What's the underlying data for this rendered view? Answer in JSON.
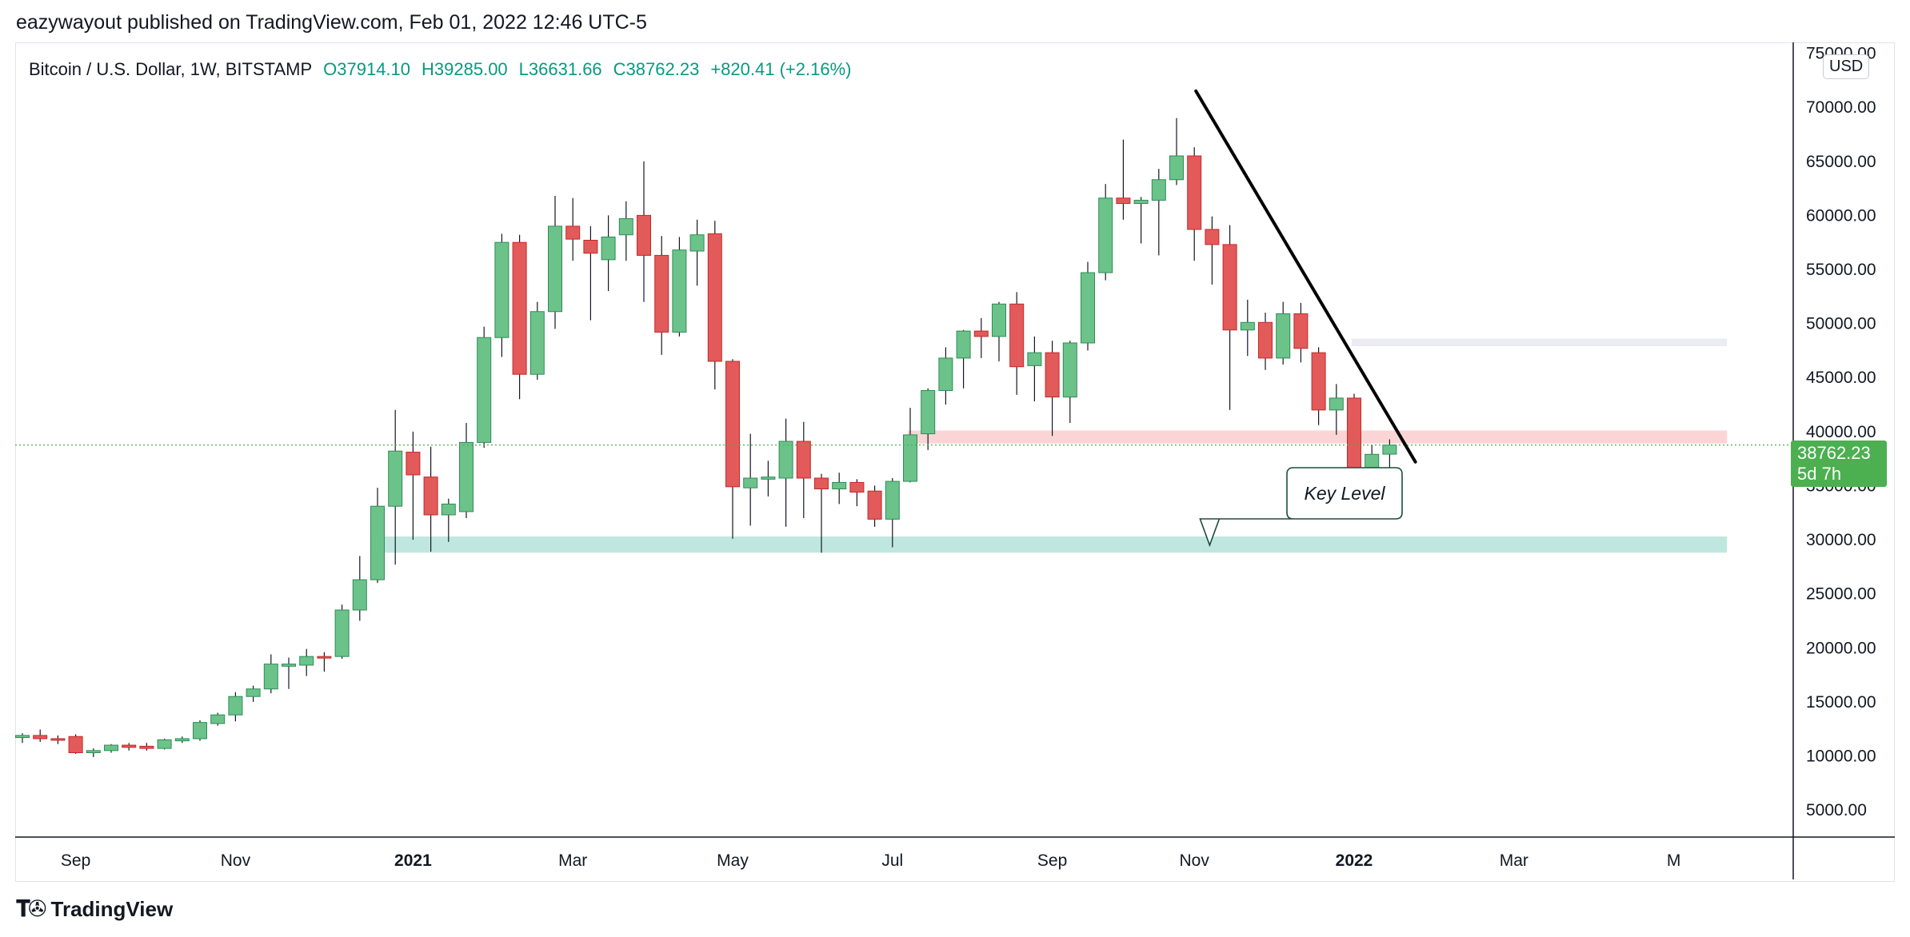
{
  "header": {
    "text": "eazywayout published on TradingView.com, Feb 01, 2022 12:46 UTC-5"
  },
  "legend": {
    "symbol": "Bitcoin / U.S. Dollar, 1W, BITSTAMP",
    "open": "O37914.10",
    "high": "H39285.00",
    "low": "L36631.66",
    "close": "C38762.23",
    "change": "+820.41 (+2.16%)"
  },
  "currency": "USD",
  "price_tag": {
    "price": "38762.23",
    "countdown": "5d 7h"
  },
  "footer": {
    "brand": "TradingView"
  },
  "colors": {
    "up": "#6cc38a",
    "up_border": "#2e8b57",
    "down": "#e25a5a",
    "down_border": "#c62828",
    "support_zone": "#bfe7df",
    "resistance_zone": "#fbd5d5",
    "upper_zone": "#ebebf2",
    "last_price": "#4caf50"
  },
  "chart_data": {
    "type": "candlestick",
    "title": "Bitcoin / U.S. Dollar, 1W, BITSTAMP",
    "ylim": [
      2500,
      76000
    ],
    "yticks": [
      5000,
      10000,
      15000,
      20000,
      25000,
      30000,
      35000,
      40000,
      45000,
      50000,
      55000,
      60000,
      65000,
      70000,
      75000
    ],
    "ytick_labels": [
      "5000.00",
      "10000.00",
      "15000.00",
      "20000.00",
      "25000.00",
      "30000.00",
      "35000.00",
      "40000.00",
      "45000.00",
      "50000.00",
      "55000.00",
      "60000.00",
      "65000.00",
      "70000.00",
      "75000.00"
    ],
    "x_axis_labels": [
      {
        "label": "Sep",
        "index": 3,
        "bold": false
      },
      {
        "label": "Nov",
        "index": 12,
        "bold": false
      },
      {
        "label": "2021",
        "index": 22,
        "bold": true
      },
      {
        "label": "Mar",
        "index": 31,
        "bold": false
      },
      {
        "label": "May",
        "index": 40,
        "bold": false
      },
      {
        "label": "Jul",
        "index": 49,
        "bold": false
      },
      {
        "label": "Sep",
        "index": 58,
        "bold": false
      },
      {
        "label": "Nov",
        "index": 66,
        "bold": false
      },
      {
        "label": "2022",
        "index": 75,
        "bold": true
      },
      {
        "label": "Mar",
        "index": 84,
        "bold": false
      },
      {
        "label": "M",
        "index": 93,
        "bold": false
      }
    ],
    "candles": [
      {
        "o": 11700,
        "h": 12100,
        "l": 11200,
        "c": 11900
      },
      {
        "o": 11900,
        "h": 12450,
        "l": 11300,
        "c": 11600
      },
      {
        "o": 11600,
        "h": 11900,
        "l": 11100,
        "c": 11500
      },
      {
        "o": 11800,
        "h": 12000,
        "l": 10200,
        "c": 10300
      },
      {
        "o": 10300,
        "h": 10700,
        "l": 9900,
        "c": 10500
      },
      {
        "o": 10500,
        "h": 11100,
        "l": 10300,
        "c": 11000
      },
      {
        "o": 11000,
        "h": 11200,
        "l": 10500,
        "c": 10800
      },
      {
        "o": 10900,
        "h": 11200,
        "l": 10500,
        "c": 10700
      },
      {
        "o": 10700,
        "h": 11600,
        "l": 10600,
        "c": 11500
      },
      {
        "o": 11400,
        "h": 11800,
        "l": 11200,
        "c": 11600
      },
      {
        "o": 11600,
        "h": 13300,
        "l": 11400,
        "c": 13100
      },
      {
        "o": 13000,
        "h": 14000,
        "l": 12800,
        "c": 13800
      },
      {
        "o": 13800,
        "h": 15900,
        "l": 13200,
        "c": 15500
      },
      {
        "o": 15500,
        "h": 16500,
        "l": 15000,
        "c": 16200
      },
      {
        "o": 16200,
        "h": 19400,
        "l": 15800,
        "c": 18500
      },
      {
        "o": 18300,
        "h": 19100,
        "l": 16200,
        "c": 18500
      },
      {
        "o": 18400,
        "h": 19900,
        "l": 17400,
        "c": 19200
      },
      {
        "o": 19200,
        "h": 19600,
        "l": 17800,
        "c": 19100
      },
      {
        "o": 19200,
        "h": 24000,
        "l": 19000,
        "c": 23500
      },
      {
        "o": 23500,
        "h": 28500,
        "l": 22500,
        "c": 26300
      },
      {
        "o": 26300,
        "h": 34800,
        "l": 26000,
        "c": 33100
      },
      {
        "o": 33100,
        "h": 42000,
        "l": 27700,
        "c": 38200
      },
      {
        "o": 38100,
        "h": 40000,
        "l": 30000,
        "c": 36000
      },
      {
        "o": 35800,
        "h": 38600,
        "l": 28900,
        "c": 32300
      },
      {
        "o": 32300,
        "h": 33800,
        "l": 29800,
        "c": 33300
      },
      {
        "o": 32600,
        "h": 40800,
        "l": 32000,
        "c": 39000
      },
      {
        "o": 39000,
        "h": 49700,
        "l": 38500,
        "c": 48700
      },
      {
        "o": 48700,
        "h": 58300,
        "l": 46900,
        "c": 57500
      },
      {
        "o": 57500,
        "h": 58200,
        "l": 43000,
        "c": 45300
      },
      {
        "o": 45300,
        "h": 52000,
        "l": 44800,
        "c": 51100
      },
      {
        "o": 51100,
        "h": 61800,
        "l": 49500,
        "c": 59000
      },
      {
        "o": 59000,
        "h": 61600,
        "l": 55800,
        "c": 57800
      },
      {
        "o": 57700,
        "h": 59000,
        "l": 50300,
        "c": 56500
      },
      {
        "o": 55900,
        "h": 60000,
        "l": 53000,
        "c": 58000
      },
      {
        "o": 58200,
        "h": 61300,
        "l": 55800,
        "c": 59700
      },
      {
        "o": 60000,
        "h": 65000,
        "l": 52000,
        "c": 56300
      },
      {
        "o": 56300,
        "h": 58100,
        "l": 47100,
        "c": 49200
      },
      {
        "o": 49200,
        "h": 58000,
        "l": 48800,
        "c": 56800
      },
      {
        "o": 56700,
        "h": 59600,
        "l": 53500,
        "c": 58200
      },
      {
        "o": 58300,
        "h": 59500,
        "l": 43900,
        "c": 46500
      },
      {
        "o": 46500,
        "h": 46700,
        "l": 30100,
        "c": 34900
      },
      {
        "o": 34800,
        "h": 39800,
        "l": 31300,
        "c": 35700
      },
      {
        "o": 35600,
        "h": 37300,
        "l": 34000,
        "c": 35800
      },
      {
        "o": 35700,
        "h": 41200,
        "l": 31200,
        "c": 39100
      },
      {
        "o": 39100,
        "h": 40900,
        "l": 32000,
        "c": 35700
      },
      {
        "o": 35700,
        "h": 36100,
        "l": 28800,
        "c": 34700
      },
      {
        "o": 34700,
        "h": 36200,
        "l": 33300,
        "c": 35300
      },
      {
        "o": 35300,
        "h": 35600,
        "l": 33100,
        "c": 34400
      },
      {
        "o": 34500,
        "h": 35000,
        "l": 31200,
        "c": 31900
      },
      {
        "o": 31900,
        "h": 35700,
        "l": 29300,
        "c": 35400
      },
      {
        "o": 35400,
        "h": 42200,
        "l": 35300,
        "c": 39700
      },
      {
        "o": 39800,
        "h": 44000,
        "l": 38300,
        "c": 43800
      },
      {
        "o": 43800,
        "h": 47800,
        "l": 42500,
        "c": 46800
      },
      {
        "o": 46800,
        "h": 49400,
        "l": 44000,
        "c": 49300
      },
      {
        "o": 49300,
        "h": 50500,
        "l": 46800,
        "c": 48800
      },
      {
        "o": 48800,
        "h": 52000,
        "l": 46500,
        "c": 51800
      },
      {
        "o": 51800,
        "h": 52900,
        "l": 43400,
        "c": 46000
      },
      {
        "o": 46100,
        "h": 48800,
        "l": 42800,
        "c": 47300
      },
      {
        "o": 47300,
        "h": 48400,
        "l": 39600,
        "c": 43200
      },
      {
        "o": 43200,
        "h": 48400,
        "l": 40800,
        "c": 48200
      },
      {
        "o": 48200,
        "h": 55700,
        "l": 47500,
        "c": 54700
      },
      {
        "o": 54700,
        "h": 62900,
        "l": 54000,
        "c": 61600
      },
      {
        "o": 61600,
        "h": 67000,
        "l": 59600,
        "c": 61100
      },
      {
        "o": 61100,
        "h": 61700,
        "l": 57400,
        "c": 61400
      },
      {
        "o": 61400,
        "h": 64300,
        "l": 56300,
        "c": 63300
      },
      {
        "o": 63300,
        "h": 69000,
        "l": 62800,
        "c": 65500
      },
      {
        "o": 65500,
        "h": 66300,
        "l": 55800,
        "c": 58700
      },
      {
        "o": 58700,
        "h": 59900,
        "l": 53600,
        "c": 57300
      },
      {
        "o": 57300,
        "h": 59100,
        "l": 42000,
        "c": 49400
      },
      {
        "o": 49400,
        "h": 52200,
        "l": 47000,
        "c": 50100
      },
      {
        "o": 50100,
        "h": 51000,
        "l": 45700,
        "c": 46800
      },
      {
        "o": 46800,
        "h": 52000,
        "l": 46200,
        "c": 50900
      },
      {
        "o": 50900,
        "h": 51900,
        "l": 46400,
        "c": 47700
      },
      {
        "o": 47300,
        "h": 47800,
        "l": 40600,
        "c": 42000
      },
      {
        "o": 42000,
        "h": 44400,
        "l": 39700,
        "c": 43100
      },
      {
        "o": 43100,
        "h": 43500,
        "l": 34100,
        "c": 36300
      },
      {
        "o": 36300,
        "h": 38800,
        "l": 32900,
        "c": 37900
      },
      {
        "o": 37914.1,
        "h": 39285,
        "l": 36631.66,
        "c": 38762.23
      }
    ],
    "last_price": 38762.23,
    "zones": [
      {
        "name": "support",
        "from_index": 20,
        "to_index": 96,
        "low": 28800,
        "high": 30300
      },
      {
        "name": "resistance",
        "from_index": 50,
        "to_index": 96,
        "low": 38900,
        "high": 40100
      },
      {
        "name": "upper",
        "from_index": 75,
        "to_index": 96,
        "low": 47900,
        "high": 48600
      }
    ],
    "trendline": {
      "from_index": 66,
      "from_price": 71500,
      "to_index": 78,
      "to_price": 37200
    },
    "annotations": [
      {
        "text": "Key Level",
        "index": 67,
        "price": 29500
      }
    ]
  }
}
